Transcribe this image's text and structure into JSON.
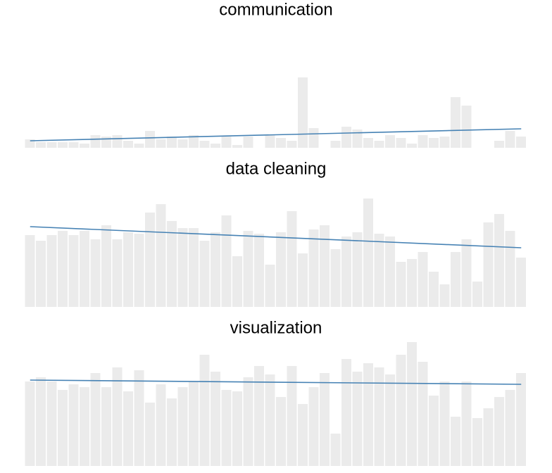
{
  "chart_data": [
    {
      "type": "bar",
      "title": "communication",
      "color": "#ebebeb",
      "trend_color": "#4682b4",
      "ylim": [
        0,
        180
      ],
      "values": [
        12,
        8,
        8,
        8,
        8,
        6,
        18,
        16,
        18,
        10,
        6,
        24,
        12,
        16,
        12,
        18,
        10,
        6,
        16,
        4,
        16,
        0,
        18,
        14,
        10,
        100,
        28,
        0,
        10,
        30,
        26,
        14,
        10,
        18,
        14,
        6,
        18,
        14,
        16,
        72,
        60,
        0,
        0,
        10,
        24,
        16
      ],
      "trend_values": [
        10,
        27
      ]
    },
    {
      "type": "bar",
      "title": "data cleaning",
      "color": "#ebebeb",
      "trend_color": "#4682b4",
      "ylim": [
        0,
        180
      ],
      "values": [
        102,
        94,
        102,
        108,
        102,
        108,
        96,
        116,
        96,
        106,
        104,
        134,
        146,
        122,
        112,
        112,
        94,
        106,
        130,
        72,
        108,
        104,
        60,
        106,
        136,
        76,
        110,
        116,
        82,
        100,
        106,
        154,
        104,
        100,
        64,
        68,
        78,
        50,
        32,
        78,
        96,
        36,
        120,
        132,
        108,
        70
      ],
      "trend_values": [
        114,
        84
      ]
    },
    {
      "type": "bar",
      "title": "visualization",
      "color": "#ebebeb",
      "trend_color": "#4682b4",
      "ylim": [
        0,
        180
      ],
      "values": [
        120,
        126,
        120,
        108,
        116,
        112,
        132,
        112,
        140,
        106,
        136,
        90,
        116,
        96,
        112,
        120,
        158,
        134,
        108,
        106,
        126,
        142,
        130,
        98,
        142,
        88,
        112,
        132,
        46,
        152,
        134,
        146,
        140,
        130,
        158,
        176,
        148,
        100,
        120,
        70,
        120,
        68,
        82,
        98,
        108,
        132
      ],
      "trend_values": [
        122,
        116
      ]
    }
  ]
}
